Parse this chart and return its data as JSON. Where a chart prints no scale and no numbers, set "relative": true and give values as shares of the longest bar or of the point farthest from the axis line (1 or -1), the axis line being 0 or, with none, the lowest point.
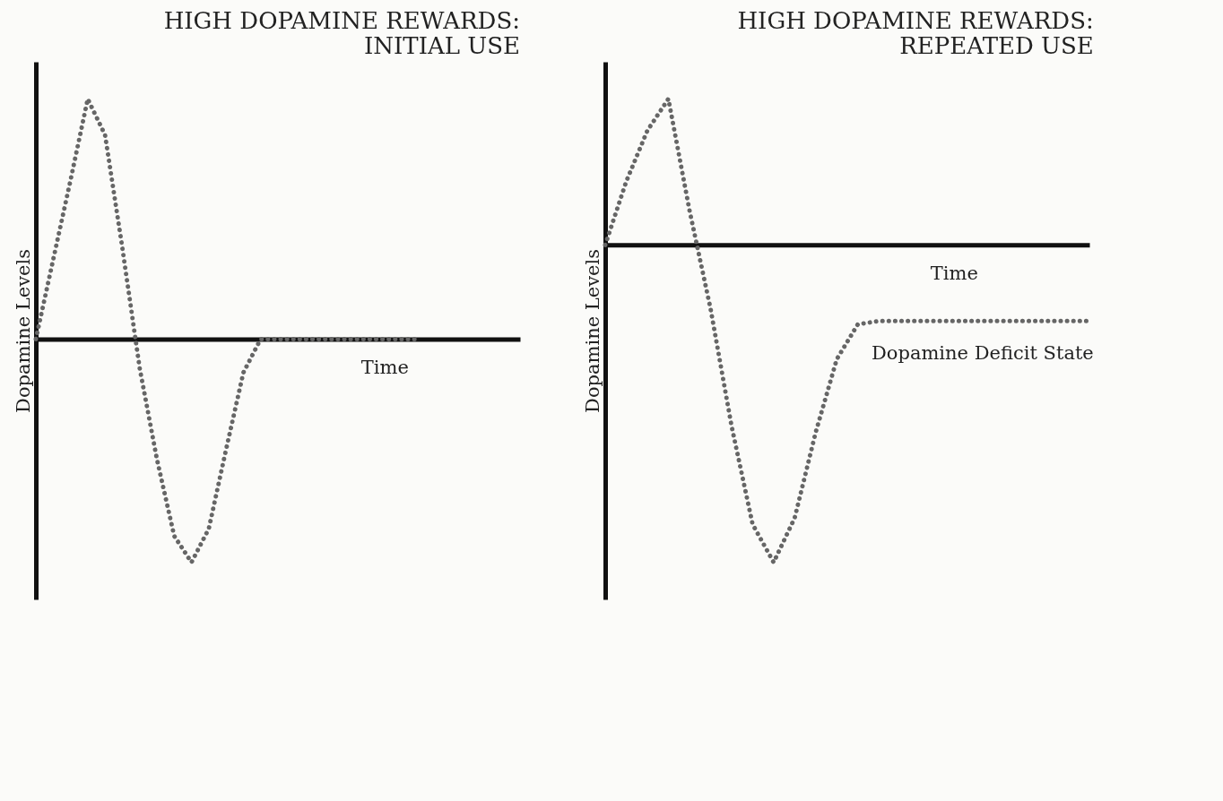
{
  "chart_data": [
    {
      "type": "line",
      "title": "HIGH DOPAMINE REWARDS:",
      "subtitle": "INITIAL USE",
      "xlabel": "Time",
      "ylabel": "Dopamine Levels",
      "relative": true,
      "line_style": "dotted",
      "categories": [
        null,
        null,
        null,
        null,
        null,
        null,
        null,
        null,
        null,
        null,
        null,
        null,
        null,
        null,
        null,
        null,
        null,
        null,
        null,
        null,
        null,
        null,
        null,
        null,
        null,
        null,
        null,
        null,
        null
      ],
      "series": [
        {
          "color": "#666666",
          "values": [
            0,
            0.33,
            0.66,
            1,
            0.85,
            0.38,
            -0.12,
            -0.5,
            -0.82,
            -0.93,
            -0.79,
            -0.46,
            -0.14,
            0,
            0,
            0,
            0,
            0,
            0,
            0,
            0,
            0,
            0,
            null,
            null,
            null,
            null,
            null,
            null
          ]
        }
      ]
    },
    {
      "type": "line",
      "title": "HIGH DOPAMINE REWARDS:",
      "subtitle": "REPEATED USE",
      "xlabel": "Time",
      "ylabel": "Dopamine Levels",
      "relative": true,
      "line_style": "dotted",
      "annotations": [
        "Dopamine Deficit State"
      ],
      "categories": [
        null,
        null,
        null,
        null,
        null,
        null,
        null,
        null,
        null,
        null,
        null,
        null,
        null,
        null,
        null,
        null,
        null,
        null,
        null,
        null,
        null,
        null,
        null,
        null
      ],
      "series": [
        {
          "color": "#666666",
          "values": [
            0,
            0.2,
            0.36,
            0.46,
            0.11,
            -0.2,
            -0.57,
            -0.88,
            -1,
            -0.86,
            -0.59,
            -0.36,
            -0.25,
            -0.24,
            -0.24,
            -0.24,
            -0.24,
            -0.24,
            -0.24,
            -0.24,
            -0.24,
            -0.24,
            -0.24,
            -0.24
          ]
        }
      ]
    }
  ]
}
